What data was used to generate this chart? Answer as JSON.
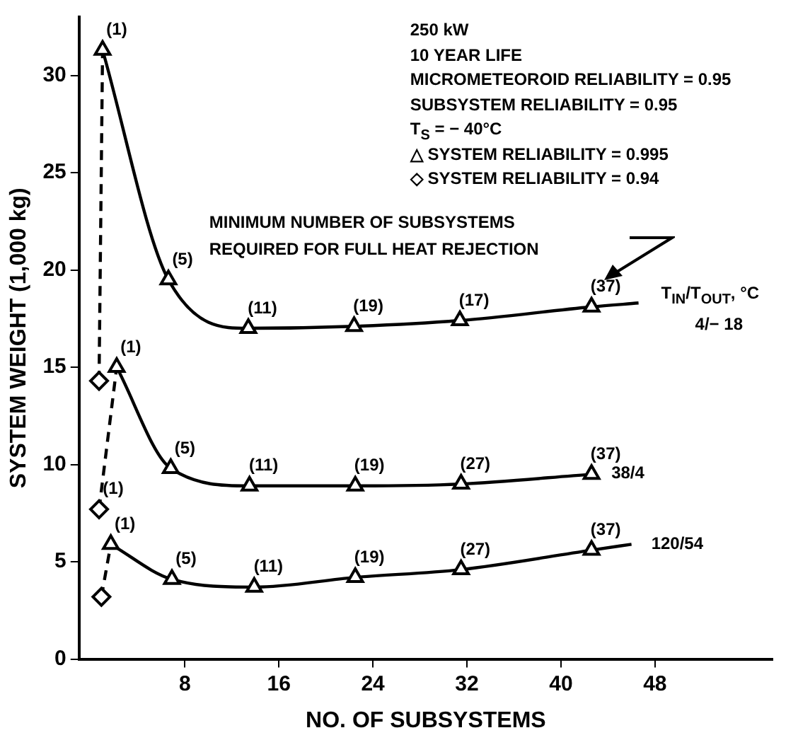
{
  "chart_data": {
    "type": "line",
    "xlabel": "NO. OF SUBSYSTEMS",
    "ylabel": "SYSTEM WEIGHT (1,000 kg)",
    "legend_title": "T$_{IN}$/T$_{OUT}$, °C",
    "xlim": [
      -1,
      58
    ],
    "xticks": [
      8,
      16,
      24,
      32,
      40,
      48
    ],
    "ylim": [
      0,
      33
    ],
    "yticks": [
      0,
      5,
      10,
      15,
      20,
      25,
      30
    ],
    "grid": false,
    "legend": false,
    "series": [
      {
        "name": "4/− 18",
        "color": "#000000",
        "line_style": "solid",
        "marker": [
          "triangle",
          "triangle",
          "triangle",
          "triangle",
          "triangle",
          "triangle",
          "none"
        ],
        "x": [
          1,
          6.6,
          13.4,
          22.4,
          31.4,
          42.6,
          46.6
        ],
        "values": [
          31.3,
          19.5,
          17.0,
          17.1,
          17.4,
          18.1,
          18.3
        ]
      },
      {
        "name": "38/4",
        "color": "#000000",
        "line_style": "solid",
        "marker": [
          "triangle",
          "triangle",
          "triangle",
          "triangle",
          "triangle",
          "triangle"
        ],
        "x": [
          2.2,
          6.8,
          13.5,
          22.5,
          31.5,
          42.6
        ],
        "values": [
          15.0,
          9.8,
          8.9,
          8.9,
          9.0,
          9.5
        ]
      },
      {
        "name": "120/54",
        "color": "#000000",
        "line_style": "solid",
        "marker": [
          "triangle",
          "triangle",
          "triangle",
          "triangle",
          "triangle",
          "triangle",
          "none"
        ],
        "x": [
          1.7,
          6.9,
          13.9,
          22.5,
          31.5,
          42.6,
          46
        ],
        "values": [
          5.9,
          4.1,
          3.7,
          4.2,
          4.6,
          5.6,
          5.9
        ]
      },
      {
        "color": "#000000",
        "line_style": "dashed",
        "marker": [
          "diamond",
          "none"
        ],
        "x": [
          0.7,
          1
        ],
        "values": [
          14.3,
          31.3
        ]
      },
      {
        "color": "#000000",
        "line_style": "dashed",
        "marker": [
          "diamond",
          "none"
        ],
        "x": [
          0.7,
          2.2
        ],
        "values": [
          7.7,
          15.0
        ]
      },
      {
        "color": "#000000",
        "line_style": "dashed",
        "marker": [
          "diamond",
          "none"
        ],
        "x": [
          0.9,
          1.7
        ],
        "values": [
          3.2,
          5.9
        ]
      }
    ],
    "annotations": [
      "250 kW",
      "10 YEAR LIFE",
      "MICROMETEOROID RELIABILITY  =  0.95",
      "SUBSYSTEM RELIABILITY = 0.95",
      "T$_{S}$ =  − 40°C",
      "△ SYSTEM RELIABILITY = 0.995",
      "◇ SYSTEM RELIABILITY  =  0.94",
      "MINIMUM NUMBER OF SUBSYSTEMS",
      "REQUIRED FOR FULL HEAT REJECTION",
      {
        "text": "(1)",
        "x": 1,
        "y": 31.3
      },
      {
        "text": "(5)",
        "x": 6.6,
        "y": 19.5
      },
      {
        "text": "(11)",
        "x": 13.4,
        "y": 17.0
      },
      {
        "text": "(19)",
        "x": 22.4,
        "y": 17.1
      },
      {
        "text": "(17)",
        "x": 31.4,
        "y": 17.4
      },
      {
        "text": "(37)",
        "x": 42.6,
        "y": 18.1
      },
      {
        "text": "(1)",
        "x": 2.2,
        "y": 15.0
      },
      {
        "text": "(5)",
        "x": 6.8,
        "y": 9.8
      },
      {
        "text": "(11)",
        "x": 13.5,
        "y": 8.9
      },
      {
        "text": "(19)",
        "x": 22.5,
        "y": 8.9
      },
      {
        "text": "(27)",
        "x": 31.5,
        "y": 9.0
      },
      {
        "text": "(37)",
        "x": 42.6,
        "y": 9.5
      },
      {
        "text": "(1)",
        "x": 1.7,
        "y": 5.9
      },
      {
        "text": "(5)",
        "x": 6.9,
        "y": 4.1
      },
      {
        "text": "(11)",
        "x": 13.9,
        "y": 3.7
      },
      {
        "text": "(19)",
        "x": 22.5,
        "y": 4.2
      },
      {
        "text": "(27)",
        "x": 31.5,
        "y": 4.6
      },
      {
        "text": "(37)",
        "x": 42.6,
        "y": 5.6
      },
      {
        "text": "(1)",
        "x": 0.7,
        "y": 7.7
      }
    ]
  }
}
